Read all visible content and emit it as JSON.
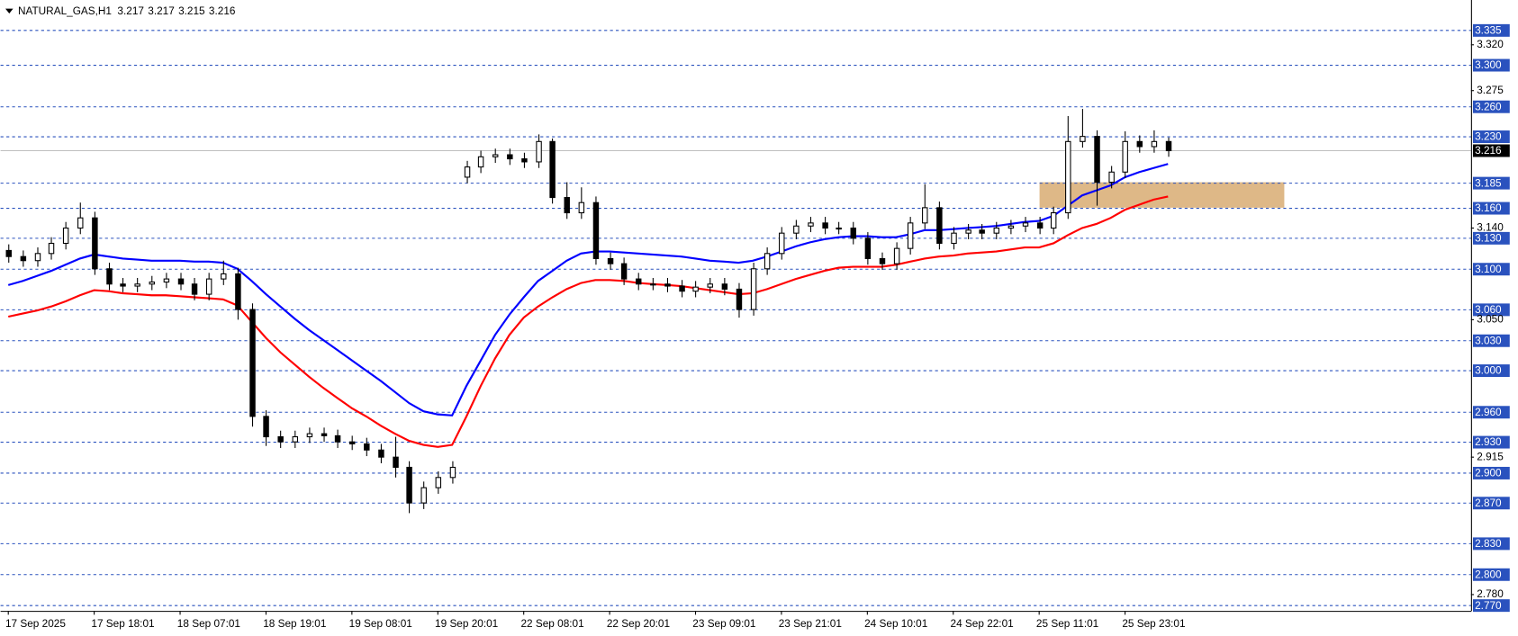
{
  "chart_data": {
    "type": "candlestick",
    "title": "NATURAL_GAS,H1",
    "quote": [
      3.217,
      3.217,
      3.215,
      3.216
    ],
    "categories": [
      "17 Sep 2025",
      null,
      null,
      null,
      null,
      null,
      "17 Sep 18:01",
      null,
      null,
      null,
      null,
      null,
      "18 Sep 07:01",
      null,
      null,
      null,
      null,
      null,
      "18 Sep 19:01",
      null,
      null,
      null,
      null,
      null,
      "19 Sep 08:01",
      null,
      null,
      null,
      null,
      null,
      "19 Sep 20:01",
      null,
      null,
      null,
      null,
      null,
      "22 Sep 08:01",
      null,
      null,
      null,
      null,
      null,
      "22 Sep 20:01",
      null,
      null,
      null,
      null,
      null,
      "23 Sep 09:01",
      null,
      null,
      null,
      null,
      null,
      "23 Sep 21:01",
      null,
      null,
      null,
      null,
      null,
      "24 Sep 10:01",
      null,
      null,
      null,
      null,
      null,
      "24 Sep 22:01",
      null,
      null,
      null,
      null,
      null,
      "25 Sep 11:01",
      null,
      null,
      null,
      null,
      null,
      "25 Sep 23:01",
      null,
      null,
      null
    ],
    "open": [
      3.118,
      3.112,
      3.108,
      3.115,
      3.125,
      3.14,
      3.15,
      3.1,
      3.085,
      3.083,
      3.085,
      3.087,
      3.09,
      3.085,
      3.075,
      3.09,
      3.095,
      3.06,
      2.955,
      2.935,
      2.93,
      2.935,
      2.938,
      2.936,
      2.93,
      2.928,
      2.922,
      2.915,
      2.905,
      2.87,
      2.885,
      2.895,
      3.19,
      3.2,
      3.21,
      3.212,
      3.208,
      3.205,
      3.225,
      3.17,
      3.155,
      3.165,
      3.11,
      3.105,
      3.09,
      3.085,
      3.085,
      3.083,
      3.078,
      3.082,
      3.085,
      3.08,
      3.06,
      3.1,
      3.115,
      3.135,
      3.142,
      3.145,
      3.14,
      3.14,
      3.13,
      3.11,
      3.105,
      3.12,
      3.145,
      3.16,
      3.125,
      3.135,
      3.138,
      3.135,
      3.14,
      3.142,
      3.145,
      3.14,
      3.155,
      3.225,
      3.23,
      3.185,
      3.195,
      3.225,
      3.22,
      3.225
    ],
    "high": [
      3.124,
      3.118,
      3.121,
      3.131,
      3.146,
      3.165,
      3.156,
      3.106,
      3.091,
      3.091,
      3.093,
      3.096,
      3.096,
      3.091,
      3.096,
      3.108,
      3.101,
      3.066,
      2.961,
      2.941,
      2.941,
      2.944,
      2.944,
      2.942,
      2.936,
      2.934,
      2.928,
      2.935,
      2.911,
      2.891,
      2.901,
      2.911,
      3.206,
      3.216,
      3.218,
      3.218,
      3.214,
      3.232,
      3.228,
      3.185,
      3.18,
      3.171,
      3.116,
      3.111,
      3.096,
      3.091,
      3.091,
      3.089,
      3.088,
      3.091,
      3.091,
      3.086,
      3.106,
      3.121,
      3.141,
      3.148,
      3.151,
      3.151,
      3.146,
      3.146,
      3.136,
      3.116,
      3.126,
      3.151,
      3.183,
      3.166,
      3.141,
      3.144,
      3.144,
      3.146,
      3.148,
      3.151,
      3.151,
      3.161,
      3.25,
      3.257,
      3.236,
      3.201,
      3.235,
      3.231,
      3.236,
      3.229
    ],
    "low": [
      3.106,
      3.102,
      3.102,
      3.109,
      3.119,
      3.134,
      3.094,
      3.079,
      3.077,
      3.077,
      3.079,
      3.081,
      3.079,
      3.069,
      3.069,
      3.084,
      3.05,
      2.945,
      2.926,
      2.924,
      2.924,
      2.929,
      2.93,
      2.924,
      2.922,
      2.916,
      2.909,
      2.895,
      2.86,
      2.864,
      2.879,
      2.889,
      3.184,
      3.194,
      3.204,
      3.202,
      3.199,
      3.199,
      3.164,
      3.149,
      3.149,
      3.104,
      3.099,
      3.084,
      3.079,
      3.079,
      3.077,
      3.072,
      3.072,
      3.076,
      3.074,
      3.052,
      3.054,
      3.094,
      3.109,
      3.129,
      3.136,
      3.134,
      3.134,
      3.124,
      3.104,
      3.099,
      3.099,
      3.114,
      3.139,
      3.119,
      3.119,
      3.129,
      3.129,
      3.129,
      3.134,
      3.136,
      3.134,
      3.134,
      3.149,
      3.219,
      3.162,
      3.179,
      3.189,
      3.214,
      3.214,
      3.21
    ],
    "close": [
      3.112,
      3.108,
      3.115,
      3.125,
      3.14,
      3.15,
      3.1,
      3.085,
      3.083,
      3.085,
      3.087,
      3.09,
      3.085,
      3.075,
      3.09,
      3.095,
      3.06,
      2.955,
      2.935,
      2.93,
      2.935,
      2.938,
      2.936,
      2.93,
      2.928,
      2.922,
      2.915,
      2.905,
      2.87,
      2.885,
      2.895,
      2.905,
      3.2,
      3.21,
      3.212,
      3.208,
      3.205,
      3.225,
      3.17,
      3.155,
      3.165,
      3.11,
      3.105,
      3.09,
      3.085,
      3.085,
      3.083,
      3.078,
      3.082,
      3.085,
      3.08,
      3.06,
      3.1,
      3.115,
      3.135,
      3.142,
      3.145,
      3.14,
      3.14,
      3.13,
      3.11,
      3.105,
      3.12,
      3.145,
      3.16,
      3.125,
      3.135,
      3.138,
      3.135,
      3.14,
      3.142,
      3.145,
      3.14,
      3.155,
      3.225,
      3.23,
      3.185,
      3.195,
      3.225,
      3.22,
      3.225,
      3.216
    ],
    "up_color": "#ffffff",
    "down_color": "#000000",
    "lines": [
      {
        "color": "#0000ff",
        "values": [
          3.084,
          3.088,
          3.093,
          3.098,
          3.104,
          3.11,
          3.114,
          3.112,
          3.11,
          3.109,
          3.108,
          3.108,
          3.108,
          3.107,
          3.107,
          3.106,
          3.1,
          3.088,
          3.075,
          3.063,
          3.051,
          3.04,
          3.03,
          3.02,
          3.01,
          3.0,
          2.99,
          2.979,
          2.968,
          2.96,
          2.957,
          2.956,
          2.985,
          3.01,
          3.035,
          3.055,
          3.072,
          3.088,
          3.098,
          3.108,
          3.115,
          3.117,
          3.117,
          3.116,
          3.115,
          3.114,
          3.113,
          3.112,
          3.11,
          3.108,
          3.107,
          3.106,
          3.108,
          3.112,
          3.117,
          3.122,
          3.126,
          3.129,
          3.131,
          3.132,
          3.132,
          3.131,
          3.131,
          3.134,
          3.138,
          3.138,
          3.139,
          3.14,
          3.141,
          3.142,
          3.144,
          3.146,
          3.147,
          3.152,
          3.162,
          3.172,
          3.177,
          3.182,
          3.19,
          3.195,
          3.199,
          3.203
        ]
      },
      {
        "color": "#ff0000",
        "values": [
          3.053,
          3.056,
          3.059,
          3.063,
          3.068,
          3.074,
          3.079,
          3.078,
          3.076,
          3.075,
          3.074,
          3.074,
          3.073,
          3.072,
          3.071,
          3.07,
          3.064,
          3.048,
          3.032,
          3.018,
          3.006,
          2.994,
          2.983,
          2.973,
          2.963,
          2.955,
          2.946,
          2.938,
          2.931,
          2.927,
          2.925,
          2.927,
          2.955,
          2.985,
          3.012,
          3.035,
          3.052,
          3.063,
          3.072,
          3.08,
          3.086,
          3.089,
          3.089,
          3.088,
          3.086,
          3.085,
          3.084,
          3.083,
          3.081,
          3.079,
          3.077,
          3.075,
          3.076,
          3.08,
          3.085,
          3.09,
          3.094,
          3.098,
          3.101,
          3.102,
          3.102,
          3.102,
          3.104,
          3.107,
          3.11,
          3.112,
          3.113,
          3.115,
          3.116,
          3.117,
          3.119,
          3.121,
          3.121,
          3.125,
          3.133,
          3.14,
          3.144,
          3.15,
          3.158,
          3.163,
          3.168,
          3.171
        ]
      }
    ],
    "ylim": [
      2.764,
      3.364
    ],
    "yticks": [
      {
        "value": 3.32,
        "label": "3.320"
      },
      3.275,
      {
        "value": 3.14,
        "label": "3.140"
      },
      {
        "value": 3.05,
        "label": "3.050"
      },
      2.915,
      {
        "value": 2.78,
        "label": "2.780"
      }
    ],
    "levels": [
      3.335,
      {
        "value": 3.3,
        "label": "3.300"
      },
      {
        "value": 3.26,
        "label": "3.260"
      },
      {
        "value": 3.23,
        "label": "3.230"
      },
      3.185,
      {
        "value": 3.16,
        "label": "3.160"
      },
      {
        "value": 3.13,
        "label": "3.130"
      },
      {
        "value": 3.1,
        "label": "3.100"
      },
      {
        "value": 3.06,
        "label": "3.060"
      },
      {
        "value": 3.03,
        "label": "3.030"
      },
      {
        "value": 3,
        "label": "3.000"
      },
      {
        "value": 2.96,
        "label": "2.960"
      },
      {
        "value": 2.93,
        "label": "2.930"
      },
      {
        "value": 2.9,
        "label": "2.900"
      },
      {
        "value": 2.87,
        "label": "2.870"
      },
      {
        "value": 2.83,
        "label": "2.830"
      },
      {
        "value": 2.8,
        "label": "2.800"
      },
      {
        "value": 2.77,
        "label": "2.770"
      }
    ],
    "level_color": "#2a52be",
    "last_price": 3.216,
    "zone": {
      "top": 3.185,
      "bottom": 3.16,
      "color": "#deb887"
    }
  }
}
